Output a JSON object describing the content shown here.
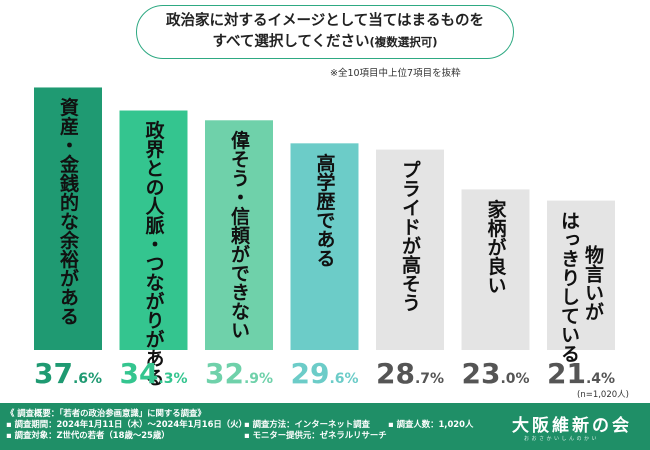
{
  "question": {
    "line1": "政治家に対するイメージとして当てはまるものを",
    "line2": "すべて選択してください",
    "line2_small": "(複数選択可)"
  },
  "note": "※全10項目中上位7項目を抜粋",
  "sample_size": "(n=1,020人)",
  "chart_data": {
    "type": "bar",
    "categories": [
      "資産・金銭的な余裕がある",
      "政界との人脈・つながりがある",
      "偉そう・信頼ができない",
      "高学歴である",
      "プライドが高そう",
      "家柄が良い",
      "物言いがはっきりしている"
    ],
    "values": [
      37.6,
      34.3,
      32.9,
      29.6,
      28.7,
      23.0,
      21.4
    ],
    "value_labels": [
      {
        "int": "37",
        "dec": ".6%"
      },
      {
        "int": "34",
        "dec": ".3%"
      },
      {
        "int": "32",
        "dec": ".9%"
      },
      {
        "int": "29",
        "dec": ".6%"
      },
      {
        "int": "28",
        "dec": ".7%"
      },
      {
        "int": "23",
        "dec": ".0%"
      },
      {
        "int": "21",
        "dec": ".4%"
      }
    ],
    "bar_label_columns": [
      [
        "資産・金銭的な余裕がある"
      ],
      [
        "政界との人脈・つながりがある"
      ],
      [
        "偉そう・信頼ができない"
      ],
      [
        "高学歴である"
      ],
      [
        "プライドが高そう"
      ],
      [
        "家柄が良い"
      ],
      [
        "はっきりしている",
        "物言いが"
      ]
    ],
    "colors": [
      "#1f9a72",
      "#34c58f",
      "#6fd1aa",
      "#6cccc8",
      "#e4e4e4",
      "#e4e4e4",
      "#e4e4e4"
    ],
    "text_colors": [
      "#111111",
      "#111111",
      "#111111",
      "#111111",
      "#111111",
      "#111111",
      "#111111"
    ],
    "value_colors": [
      "#1f9a72",
      "#34c58f",
      "#6fd1aa",
      "#6cccc8",
      "#555555",
      "#555555",
      "#555555"
    ],
    "ylim": [
      0,
      40
    ]
  },
  "footer": {
    "line1": "《 調査概要：「若者の政治参画意識」に関する調査》",
    "period": "▪ 調査期間：2024年1月11日（木）〜2024年1月16日（火）",
    "target": "▪ 調査対象：Z世代の若者（18歳〜25歳）",
    "method": "▪ 調査方法：インターネット調査",
    "provider": "▪ モニター提供元：ゼネラルリサーチ",
    "count": "▪ 調査人数：1,020人",
    "logo": "大阪維新の会",
    "logo_sub": "おおさかいしんのかい"
  }
}
